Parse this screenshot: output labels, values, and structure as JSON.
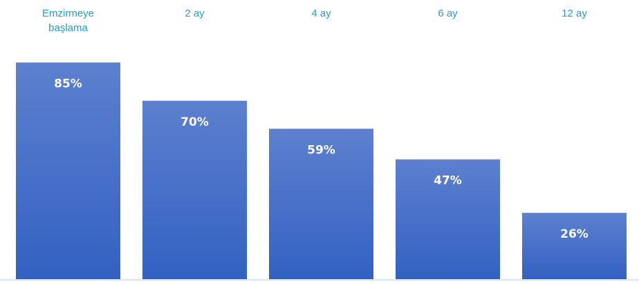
{
  "chart_data": {
    "type": "bar",
    "categories": [
      [
        "Emzirmeye",
        "başlama"
      ],
      [
        "2 ay"
      ],
      [
        "4 ay"
      ],
      [
        "6 ay"
      ],
      [
        "12 ay"
      ]
    ],
    "values": [
      85,
      70,
      59,
      47,
      26
    ],
    "value_labels": [
      "85%",
      "70%",
      "59%",
      "47%",
      "26%"
    ],
    "ylim": [
      0,
      100
    ],
    "category_label_position": "top",
    "grid": false,
    "legend": "none"
  },
  "colors": {
    "label_text": "#2a9bc4",
    "value_text": "#ffffff",
    "bar_top": "#5d80cf",
    "bar_bottom": "#3361c2",
    "baseline": "#dce8f5"
  }
}
